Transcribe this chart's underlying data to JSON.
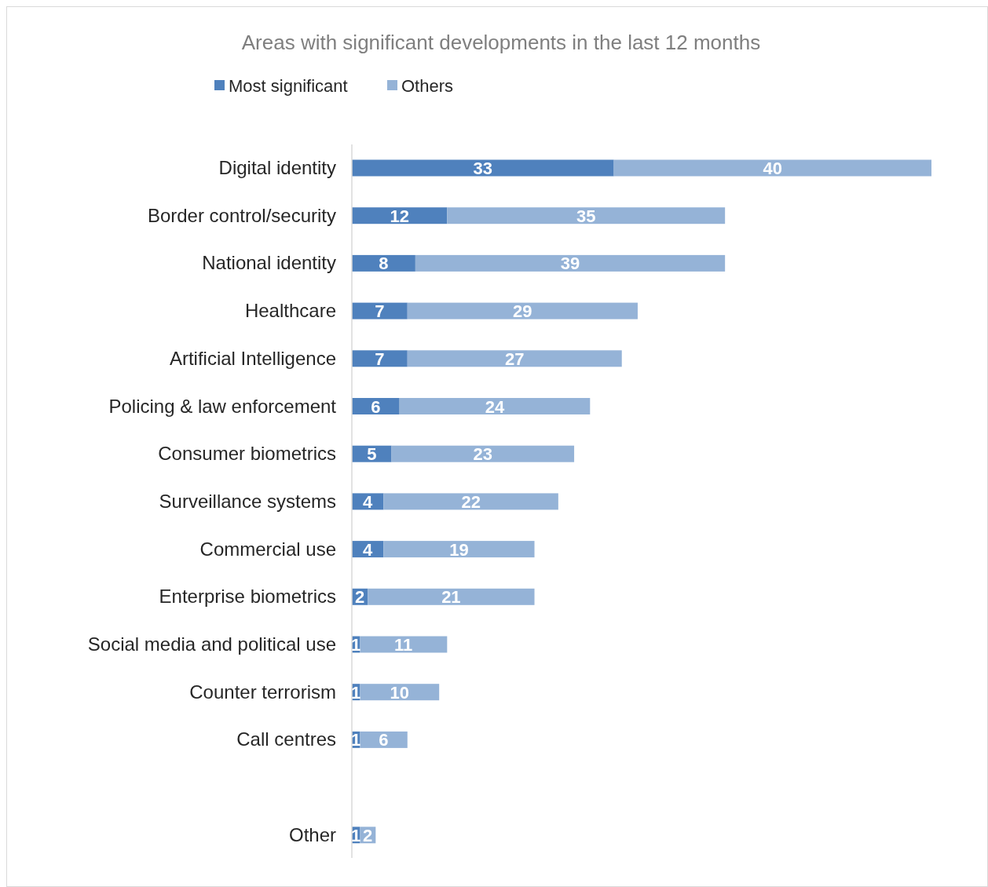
{
  "chart_data": {
    "type": "bar",
    "orientation": "horizontal",
    "stacked": true,
    "title": "Areas with significant developments in the last 12 months",
    "categories": [
      "Digital identity",
      "Border control/security",
      "National identity",
      "Healthcare",
      "Artificial Intelligence",
      "Policing & law enforcement",
      "Consumer biometrics",
      "Surveillance systems",
      "Commercial use",
      "Enterprise biometrics",
      "Social media and political use",
      "Counter terrorism",
      "Call centres",
      null,
      "Other"
    ],
    "series": [
      {
        "name": "Most significant",
        "color": "#4f81bd",
        "values": [
          33,
          12,
          8,
          7,
          7,
          6,
          5,
          4,
          4,
          2,
          1,
          1,
          1,
          null,
          1
        ]
      },
      {
        "name": "Others",
        "color": "#95b3d7",
        "values": [
          40,
          35,
          39,
          29,
          27,
          24,
          23,
          22,
          19,
          21,
          11,
          10,
          6,
          null,
          2
        ]
      }
    ],
    "data_labels": true,
    "legend": "top",
    "grid": false
  }
}
